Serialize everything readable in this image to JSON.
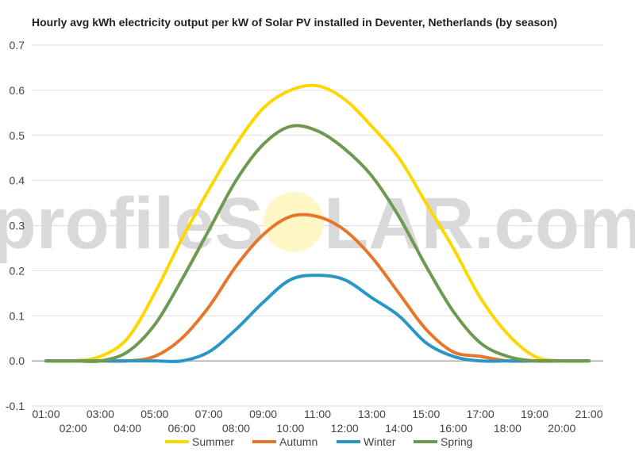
{
  "chart_data": {
    "type": "line",
    "title": "Hourly avg kWh electricity output per kW of Solar PV installed in Deventer, Netherlands (by season)",
    "xlabel": "",
    "ylabel": "",
    "ylim": [
      -0.1,
      0.7
    ],
    "yticks": [
      "0.7",
      "0.6",
      "0.5",
      "0.4",
      "0.3",
      "0.2",
      "0.1",
      "0.0",
      "-0.1"
    ],
    "ytick_values": [
      0.7,
      0.6,
      0.5,
      0.4,
      0.3,
      0.2,
      0.1,
      0.0,
      -0.1
    ],
    "categories": [
      "01:00",
      "02:00",
      "03:00",
      "04:00",
      "05:00",
      "06:00",
      "07:00",
      "08:00",
      "09:00",
      "10:00",
      "11:00",
      "12:00",
      "13:00",
      "14:00",
      "15:00",
      "16:00",
      "17:00",
      "18:00",
      "19:00",
      "20:00",
      "21:00"
    ],
    "grid": true,
    "legend_position": "bottom",
    "watermark": {
      "text_left": "profileS",
      "text_right": "LAR.com"
    },
    "series": [
      {
        "name": "Summer",
        "color": "#FFD700",
        "values": [
          0.0,
          0.0,
          0.01,
          0.05,
          0.15,
          0.27,
          0.38,
          0.48,
          0.56,
          0.6,
          0.61,
          0.58,
          0.52,
          0.45,
          0.35,
          0.25,
          0.14,
          0.06,
          0.01,
          0.0,
          0.0
        ]
      },
      {
        "name": "Autumn",
        "color": "#E8762A",
        "values": [
          0.0,
          0.0,
          0.0,
          0.0,
          0.01,
          0.05,
          0.12,
          0.21,
          0.28,
          0.32,
          0.32,
          0.29,
          0.23,
          0.15,
          0.07,
          0.02,
          0.01,
          0.0,
          0.0,
          0.0,
          0.0
        ]
      },
      {
        "name": "Winter",
        "color": "#2A96C8",
        "values": [
          0.0,
          0.0,
          0.0,
          0.0,
          0.0,
          0.0,
          0.02,
          0.07,
          0.13,
          0.18,
          0.19,
          0.18,
          0.14,
          0.1,
          0.04,
          0.01,
          0.0,
          0.0,
          0.0,
          0.0,
          0.0
        ]
      },
      {
        "name": "Spring",
        "color": "#6E9A50",
        "values": [
          0.0,
          0.0,
          0.0,
          0.02,
          0.08,
          0.18,
          0.29,
          0.4,
          0.48,
          0.52,
          0.51,
          0.47,
          0.41,
          0.32,
          0.21,
          0.11,
          0.04,
          0.01,
          0.0,
          0.0,
          0.0
        ]
      }
    ]
  }
}
